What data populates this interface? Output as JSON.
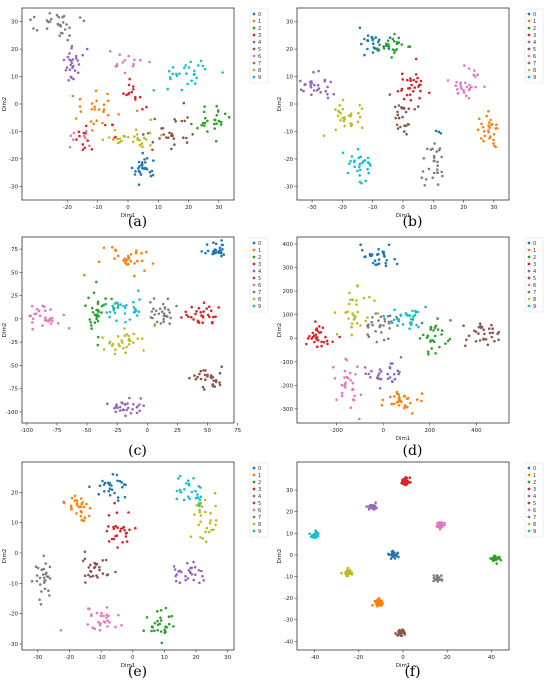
{
  "palette": [
    "#1f77b4",
    "#ff7f0e",
    "#2ca02c",
    "#d62728",
    "#9467bd",
    "#8c564b",
    "#e377c2",
    "#7f7f7f",
    "#bcbd22",
    "#17becf"
  ],
  "chart_data": [
    {
      "id": "a",
      "type": "scatter",
      "caption": "(a)",
      "xlabel": "Dim1",
      "ylabel": "Dim2",
      "xlim": [
        -35,
        35
      ],
      "ylim": [
        -35,
        35
      ],
      "xticks": [
        -20,
        -10,
        0,
        10,
        20,
        30
      ],
      "yticks": [
        -30,
        -20,
        -10,
        0,
        10,
        20,
        30
      ],
      "legend": [
        "0",
        "1",
        "2",
        "3",
        "4",
        "5",
        "6",
        "7",
        "8",
        "9"
      ],
      "clusters": [
        {
          "cls": 0,
          "x": 5,
          "y": -23,
          "sx": 2.5,
          "sy": 2,
          "n": 28
        },
        {
          "cls": 1,
          "x": -10,
          "y": -3,
          "sx": 5,
          "sy": 5,
          "n": 28
        },
        {
          "cls": 2,
          "x": 28,
          "y": -7,
          "sx": 3,
          "sy": 3,
          "n": 28
        },
        {
          "cls": 3,
          "x": -13,
          "y": -12,
          "sx": 3,
          "sy": 3,
          "n": 14
        },
        {
          "cls": 3,
          "x": 2,
          "y": 3,
          "sx": 2,
          "sy": 3,
          "n": 14
        },
        {
          "cls": 4,
          "x": -18,
          "y": 15,
          "sx": 3,
          "sy": 3,
          "n": 28
        },
        {
          "cls": 5,
          "x": 14,
          "y": -10,
          "sx": 4,
          "sy": 4,
          "n": 28
        },
        {
          "cls": 6,
          "x": 0,
          "y": 15,
          "sx": 3,
          "sy": 2,
          "n": 14
        },
        {
          "cls": 6,
          "x": -16,
          "y": -13,
          "sx": 2,
          "sy": 2,
          "n": 8
        },
        {
          "cls": 7,
          "x": -22,
          "y": 30,
          "sx": 4,
          "sy": 3,
          "n": 28
        },
        {
          "cls": 8,
          "x": 0,
          "y": -13,
          "sx": 4,
          "sy": 2,
          "n": 28
        },
        {
          "cls": 9,
          "x": 18,
          "y": 10,
          "sx": 4,
          "sy": 3,
          "n": 28
        }
      ]
    },
    {
      "id": "b",
      "type": "scatter",
      "caption": "(b)",
      "xlabel": "Dim1",
      "ylabel": "Dim2",
      "xlim": [
        -35,
        35
      ],
      "ylim": [
        -35,
        35
      ],
      "xticks": [
        -30,
        -20,
        -10,
        0,
        10,
        20,
        30
      ],
      "yticks": [
        -30,
        -20,
        -10,
        0,
        10,
        20,
        30
      ],
      "legend": [
        "0",
        "1",
        "2",
        "3",
        "4",
        "5",
        "6",
        "7",
        "8",
        "9"
      ],
      "clusters": [
        {
          "cls": 0,
          "x": -10,
          "y": 22,
          "sx": 2.5,
          "sy": 2.5,
          "n": 25
        },
        {
          "cls": 0,
          "x": 12,
          "y": -10,
          "sx": 0.6,
          "sy": 0.6,
          "n": 3
        },
        {
          "cls": 1,
          "x": 29,
          "y": -10,
          "sx": 2,
          "sy": 3,
          "n": 28
        },
        {
          "cls": 2,
          "x": -3,
          "y": 21,
          "sx": 3,
          "sy": 2,
          "n": 28
        },
        {
          "cls": 3,
          "x": 3,
          "y": 7,
          "sx": 3,
          "sy": 3,
          "n": 28
        },
        {
          "cls": 4,
          "x": -28,
          "y": 6,
          "sx": 3,
          "sy": 3,
          "n": 28
        },
        {
          "cls": 5,
          "x": 0,
          "y": -5,
          "sx": 2,
          "sy": 3,
          "n": 28
        },
        {
          "cls": 6,
          "x": 20,
          "y": 7,
          "sx": 3,
          "sy": 3,
          "n": 28
        },
        {
          "cls": 7,
          "x": 11,
          "y": -21,
          "sx": 2,
          "sy": 4,
          "n": 28
        },
        {
          "cls": 8,
          "x": -19,
          "y": -4,
          "sx": 3,
          "sy": 3,
          "n": 28
        },
        {
          "cls": 9,
          "x": -14,
          "y": -22,
          "sx": 3,
          "sy": 3,
          "n": 28
        }
      ]
    },
    {
      "id": "c",
      "type": "scatter",
      "caption": "(c)",
      "xlabel": "",
      "ylabel": "Dim2",
      "xlim": [
        -104,
        72
      ],
      "ylim": [
        -112,
        88
      ],
      "xticks": [
        -100,
        -75,
        -50,
        -25,
        0,
        25,
        50,
        75
      ],
      "yticks": [
        -100,
        -75,
        -50,
        -25,
        0,
        25,
        50,
        75
      ],
      "legend": [
        "0",
        "1",
        "2",
        "3",
        "4",
        "5",
        "6",
        "7",
        "8",
        "9"
      ],
      "clusters": [
        {
          "cls": 0,
          "x": 58,
          "y": 72,
          "sx": 6,
          "sy": 4,
          "n": 30
        },
        {
          "cls": 1,
          "x": -18,
          "y": 64,
          "sx": 9,
          "sy": 6,
          "n": 30
        },
        {
          "cls": 2,
          "x": -40,
          "y": 10,
          "sx": 6,
          "sy": 12,
          "n": 30
        },
        {
          "cls": 3,
          "x": 45,
          "y": 5,
          "sx": 7,
          "sy": 7,
          "n": 30
        },
        {
          "cls": 4,
          "x": -17,
          "y": -93,
          "sx": 8,
          "sy": 5,
          "n": 30
        },
        {
          "cls": 5,
          "x": 50,
          "y": -64,
          "sx": 7,
          "sy": 6,
          "n": 30
        },
        {
          "cls": 6,
          "x": -85,
          "y": 0,
          "sx": 8,
          "sy": 6,
          "n": 30
        },
        {
          "cls": 7,
          "x": 12,
          "y": 7,
          "sx": 6,
          "sy": 6,
          "n": 30
        },
        {
          "cls": 8,
          "x": -20,
          "y": -25,
          "sx": 9,
          "sy": 7,
          "n": 30
        },
        {
          "cls": 9,
          "x": -20,
          "y": 12,
          "sx": 8,
          "sy": 10,
          "n": 30
        }
      ]
    },
    {
      "id": "d",
      "type": "scatter",
      "caption": "(d)",
      "xlabel": "Dim1",
      "ylabel": "Dim2",
      "xlim": [
        -370,
        540
      ],
      "ylim": [
        -360,
        430
      ],
      "xticks": [
        -200,
        0,
        200,
        400
      ],
      "yticks": [
        -300,
        -200,
        -100,
        0,
        100,
        200,
        300,
        400
      ],
      "legend": [
        "0",
        "1",
        "2",
        "3",
        "4",
        "5",
        "6",
        "7",
        "8",
        "9"
      ],
      "clusters": [
        {
          "cls": 0,
          "x": -20,
          "y": 345,
          "sx": 35,
          "sy": 25,
          "n": 30
        },
        {
          "cls": 1,
          "x": 90,
          "y": -270,
          "sx": 45,
          "sy": 25,
          "n": 30
        },
        {
          "cls": 2,
          "x": 210,
          "y": 10,
          "sx": 35,
          "sy": 40,
          "n": 30
        },
        {
          "cls": 3,
          "x": -280,
          "y": 5,
          "sx": 35,
          "sy": 30,
          "n": 30
        },
        {
          "cls": 4,
          "x": 0,
          "y": -150,
          "sx": 40,
          "sy": 25,
          "n": 30
        },
        {
          "cls": 5,
          "x": 440,
          "y": 10,
          "sx": 35,
          "sy": 25,
          "n": 30
        },
        {
          "cls": 6,
          "x": -150,
          "y": -200,
          "sx": 30,
          "sy": 55,
          "n": 30
        },
        {
          "cls": 7,
          "x": -10,
          "y": 60,
          "sx": 35,
          "sy": 30,
          "n": 30
        },
        {
          "cls": 8,
          "x": -130,
          "y": 120,
          "sx": 40,
          "sy": 50,
          "n": 30
        },
        {
          "cls": 9,
          "x": 110,
          "y": 80,
          "sx": 35,
          "sy": 25,
          "n": 30
        }
      ]
    },
    {
      "id": "e",
      "type": "scatter",
      "caption": "(e)",
      "xlabel": "Dim1",
      "ylabel": "Dim2",
      "xlim": [
        -35,
        32
      ],
      "ylim": [
        -32,
        30
      ],
      "xticks": [
        -30,
        -20,
        -10,
        0,
        10,
        20,
        30
      ],
      "yticks": [
        -30,
        -20,
        -10,
        0,
        10,
        20
      ],
      "legend": [
        "0",
        "1",
        "2",
        "3",
        "4",
        "5",
        "6",
        "7",
        "8",
        "9"
      ],
      "clusters": [
        {
          "cls": 0,
          "x": -7,
          "y": 22,
          "sx": 3,
          "sy": 2,
          "n": 28
        },
        {
          "cls": 1,
          "x": -17,
          "y": 14,
          "sx": 2,
          "sy": 3,
          "n": 28
        },
        {
          "cls": 2,
          "x": 9,
          "y": -24,
          "sx": 2.5,
          "sy": 2.5,
          "n": 28
        },
        {
          "cls": 3,
          "x": -4,
          "y": 8,
          "sx": 2,
          "sy": 3,
          "n": 28
        },
        {
          "cls": 4,
          "x": 18,
          "y": -7,
          "sx": 2,
          "sy": 2,
          "n": 28
        },
        {
          "cls": 5,
          "x": -11,
          "y": -5,
          "sx": 3,
          "sy": 2.5,
          "n": 28
        },
        {
          "cls": 6,
          "x": -10,
          "y": -22,
          "sx": 3,
          "sy": 2,
          "n": 28
        },
        {
          "cls": 7,
          "x": -28,
          "y": -8,
          "sx": 2,
          "sy": 4,
          "n": 28
        },
        {
          "cls": 8,
          "x": 23,
          "y": 12,
          "sx": 2,
          "sy": 4,
          "n": 28
        },
        {
          "cls": 9,
          "x": 18,
          "y": 20,
          "sx": 3,
          "sy": 2.5,
          "n": 28
        }
      ]
    },
    {
      "id": "f",
      "type": "scatter",
      "caption": "(f)",
      "xlabel": "Dim1",
      "ylabel": "Dim2",
      "xlim": [
        -48,
        48
      ],
      "ylim": [
        -44,
        43
      ],
      "xticks": [
        -40,
        -20,
        0,
        20,
        40
      ],
      "yticks": [
        -40,
        -30,
        -20,
        -10,
        0,
        10,
        20,
        30
      ],
      "legend": [
        "0",
        "1",
        "2",
        "3",
        "4",
        "5",
        "6",
        "7",
        "8",
        "9"
      ],
      "clusters": [
        {
          "cls": 0,
          "x": -4,
          "y": 0,
          "sx": 1,
          "sy": 0.8,
          "n": 30
        },
        {
          "cls": 1,
          "x": -11,
          "y": -22,
          "sx": 1,
          "sy": 0.8,
          "n": 30
        },
        {
          "cls": 2,
          "x": 42,
          "y": -2,
          "sx": 1,
          "sy": 0.8,
          "n": 30
        },
        {
          "cls": 3,
          "x": 1,
          "y": 34,
          "sx": 1,
          "sy": 0.8,
          "n": 30
        },
        {
          "cls": 4,
          "x": -14,
          "y": 22,
          "sx": 1,
          "sy": 0.8,
          "n": 30
        },
        {
          "cls": 5,
          "x": -1,
          "y": -36,
          "sx": 1,
          "sy": 0.8,
          "n": 30
        },
        {
          "cls": 6,
          "x": 17,
          "y": 14,
          "sx": 1,
          "sy": 0.8,
          "n": 30
        },
        {
          "cls": 7,
          "x": 16,
          "y": -11,
          "sx": 1,
          "sy": 0.8,
          "n": 30
        },
        {
          "cls": 8,
          "x": -25,
          "y": -8,
          "sx": 1.2,
          "sy": 0.8,
          "n": 30
        },
        {
          "cls": 9,
          "x": -40,
          "y": 9,
          "sx": 1,
          "sy": 0.8,
          "n": 30
        }
      ]
    }
  ]
}
